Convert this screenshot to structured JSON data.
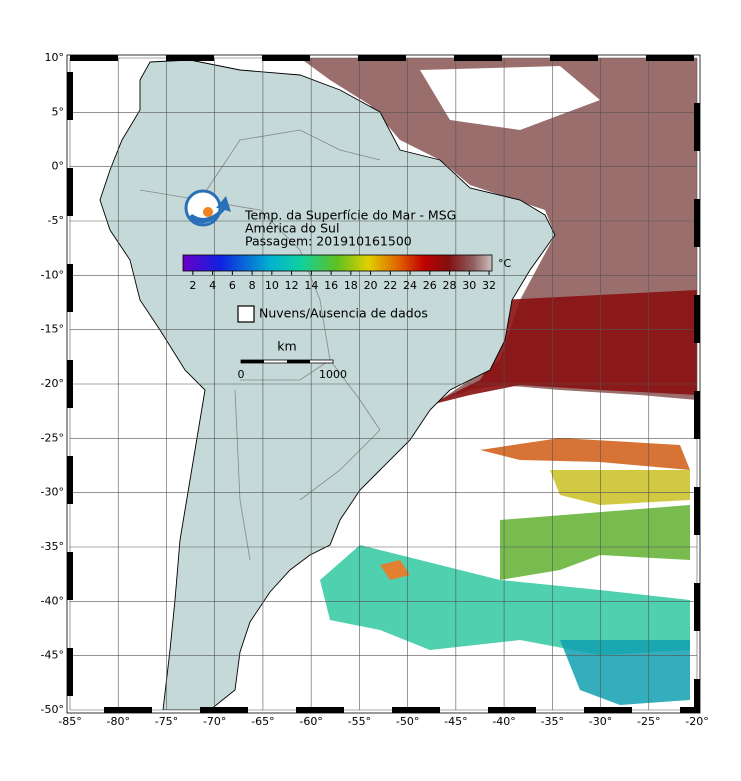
{
  "header": {
    "title": "Temp. da Superfície do Mar - MSG",
    "region": "América do Sul",
    "pass": "Passagem: 201910161500"
  },
  "colorbar": {
    "range": [
      1,
      32.3
    ],
    "ticks": [
      2,
      4,
      6,
      8,
      10,
      12,
      14,
      16,
      18,
      20,
      22,
      24,
      26,
      28,
      30,
      32
    ],
    "unit": "°C"
  },
  "legend": {
    "label": "Nuvens/Ausencia de dados"
  },
  "scale_bar": {
    "unit": "km",
    "start": 0,
    "end": 1000
  },
  "map": {
    "xlim": [
      -85,
      -20
    ],
    "ylim": [
      -50,
      10
    ],
    "xticks": [
      {
        "value": -85,
        "label": "-85°"
      },
      {
        "value": -80,
        "label": "-80°"
      },
      {
        "value": -75,
        "label": "-75°"
      },
      {
        "value": -70,
        "label": "-70°"
      },
      {
        "value": -65,
        "label": "-65°"
      },
      {
        "value": -60,
        "label": "-60°"
      },
      {
        "value": -55,
        "label": "-55°"
      },
      {
        "value": -50,
        "label": "-50°"
      },
      {
        "value": -45,
        "label": "-45°"
      },
      {
        "value": -40,
        "label": "-40°"
      },
      {
        "value": -35,
        "label": "-35°"
      },
      {
        "value": -30,
        "label": "-30°"
      },
      {
        "value": -25,
        "label": "-25°"
      },
      {
        "value": -20,
        "label": "-20°"
      }
    ],
    "yticks": [
      {
        "value": 10,
        "label": "10°"
      },
      {
        "value": 5,
        "label": "5°"
      },
      {
        "value": 0,
        "label": "0°"
      },
      {
        "value": -5,
        "label": "-5°"
      },
      {
        "value": -10,
        "label": "-10°"
      },
      {
        "value": -15,
        "label": "-15°"
      },
      {
        "value": -20,
        "label": "-20°"
      },
      {
        "value": -25,
        "label": "-25°"
      },
      {
        "value": -30,
        "label": "-30°"
      },
      {
        "value": -35,
        "label": "-35°"
      },
      {
        "value": -40,
        "label": "-40°"
      },
      {
        "value": -45,
        "label": "-45°"
      },
      {
        "value": -50,
        "label": "-50°"
      }
    ]
  }
}
